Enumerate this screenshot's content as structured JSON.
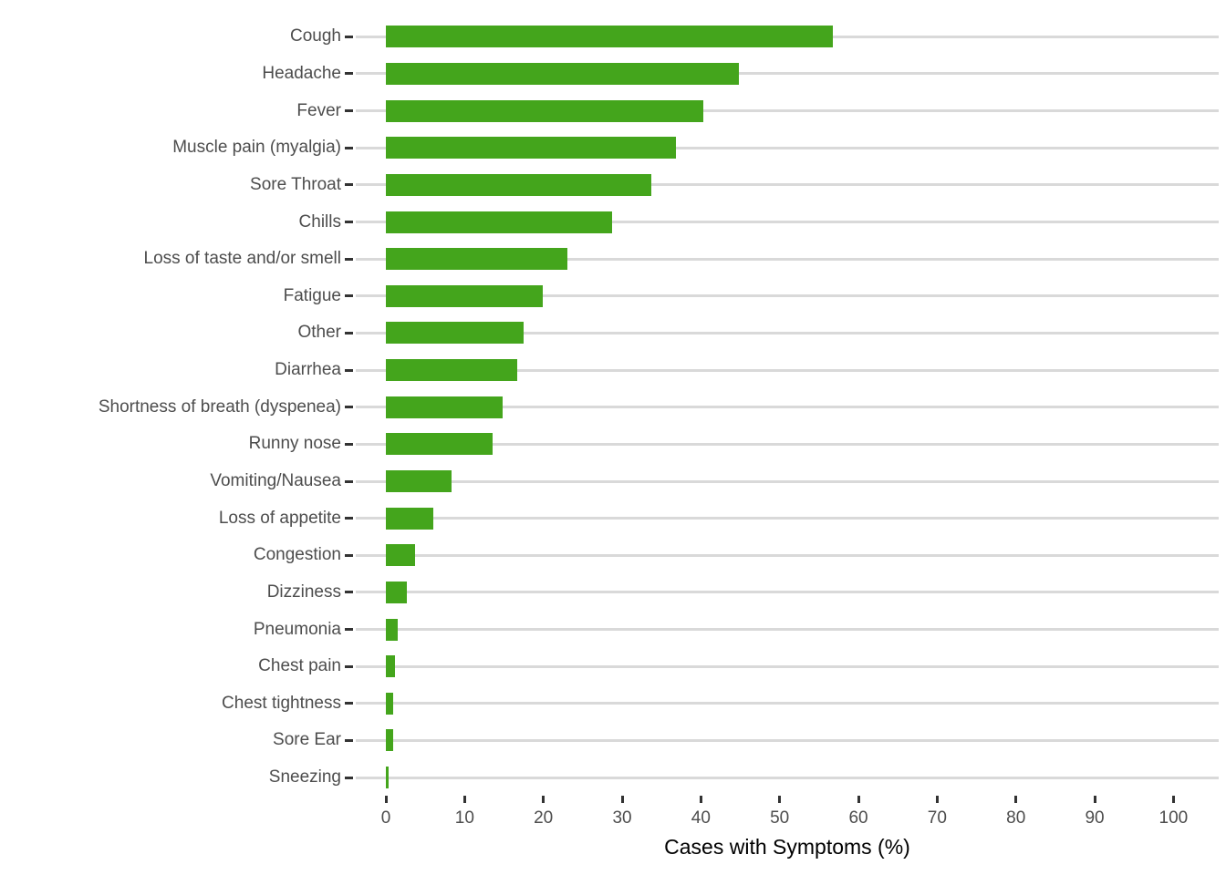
{
  "chart_data": {
    "type": "bar",
    "orientation": "horizontal",
    "title": "",
    "xlabel": "Cases with Symptoms (%)",
    "ylabel": "",
    "categories": [
      "Cough",
      "Headache",
      "Fever",
      "Muscle pain (myalgia)",
      "Sore Throat",
      "Chills",
      "Loss of taste and/or smell",
      "Fatigue",
      "Other",
      "Diarrhea",
      "Shortness of breath (dyspenea)",
      "Runny nose",
      "Vomiting/Nausea",
      "Loss of appetite",
      "Congestion",
      "Dizziness",
      "Pneumonia",
      "Chest pain",
      "Chest tightness",
      "Sore Ear",
      "Sneezing"
    ],
    "values": [
      56.8,
      44.8,
      40.3,
      36.8,
      33.7,
      28.7,
      23.1,
      19.9,
      17.5,
      16.7,
      14.8,
      13.6,
      8.3,
      6.0,
      3.7,
      2.7,
      1.5,
      1.2,
      0.9,
      0.9,
      0.4
    ],
    "xlim": [
      0,
      100
    ],
    "xticks": [
      0,
      10,
      20,
      30,
      40,
      50,
      60,
      70,
      80,
      90,
      100
    ],
    "grid": "horizontal-category-lines-only",
    "legend": "none",
    "bar_color": "#44A51C",
    "gridline_color": "#D9D9D9",
    "tick_color": "#333333",
    "axis_text_color": "#4D4D4D",
    "axis_title_color": "#000000",
    "background": "#FFFFFF"
  }
}
